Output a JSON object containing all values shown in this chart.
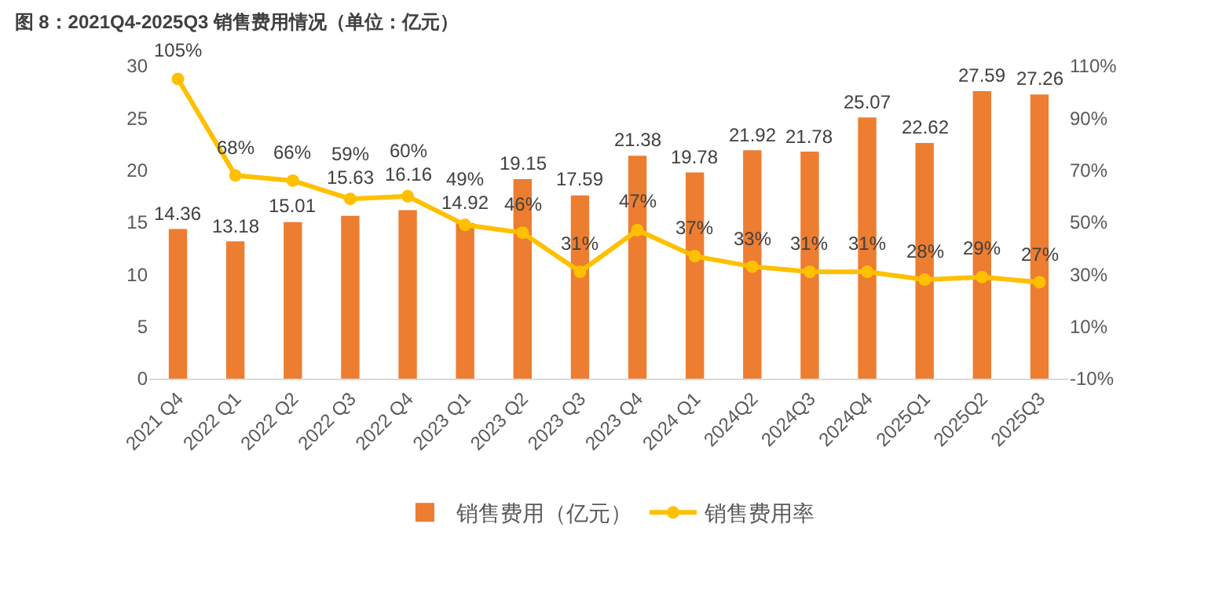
{
  "chart_data": {
    "type": "bar",
    "title": "图 8：2021Q4-2025Q3 销售费用情况（单位：亿元）",
    "categories": [
      "2021 Q4",
      "2022 Q1",
      "2022 Q2",
      "2022 Q3",
      "2022 Q4",
      "2023 Q1",
      "2023 Q2",
      "2023 Q3",
      "2023 Q4",
      "2024 Q1",
      "2024Q2",
      "2024Q3",
      "2024Q4",
      "2025Q1",
      "2025Q2",
      "2025Q3"
    ],
    "series": [
      {
        "name": "销售费用（亿元）",
        "color": "#ed7d31",
        "values": [
          14.36,
          13.18,
          15.01,
          15.63,
          16.16,
          14.92,
          19.15,
          17.59,
          21.38,
          19.78,
          21.92,
          21.78,
          25.07,
          22.62,
          27.59,
          27.26
        ]
      },
      {
        "name": "销售费用率",
        "type": "line",
        "axis": "y2",
        "color": "#ffc000",
        "marker": "circle",
        "values": [
          105,
          68,
          66,
          59,
          60,
          49,
          46,
          31,
          47,
          37,
          33,
          31,
          31,
          28,
          29,
          27
        ],
        "value_labels": [
          "105%",
          "68%",
          "66%",
          "59%",
          "60%",
          "49%",
          "46%",
          "31%",
          "47%",
          "37%",
          "33%",
          "31%",
          "31%",
          "28%",
          "29%",
          "27%"
        ]
      }
    ],
    "data_labels": true,
    "ylim": [
      0,
      30
    ],
    "yticks": [
      0,
      5,
      10,
      15,
      20,
      25,
      30
    ],
    "y2lim": [
      -10,
      110
    ],
    "y2ticks": [
      {
        "value": -10,
        "label": "-10%"
      },
      {
        "value": 10,
        "label": "10%"
      },
      {
        "value": 30,
        "label": "30%"
      },
      {
        "value": 50,
        "label": "50%"
      },
      {
        "value": 70,
        "label": "70%"
      },
      {
        "value": 90,
        "label": "90%"
      },
      {
        "value": 110,
        "label": "110%"
      }
    ],
    "grid": false,
    "legend": "bottom"
  }
}
